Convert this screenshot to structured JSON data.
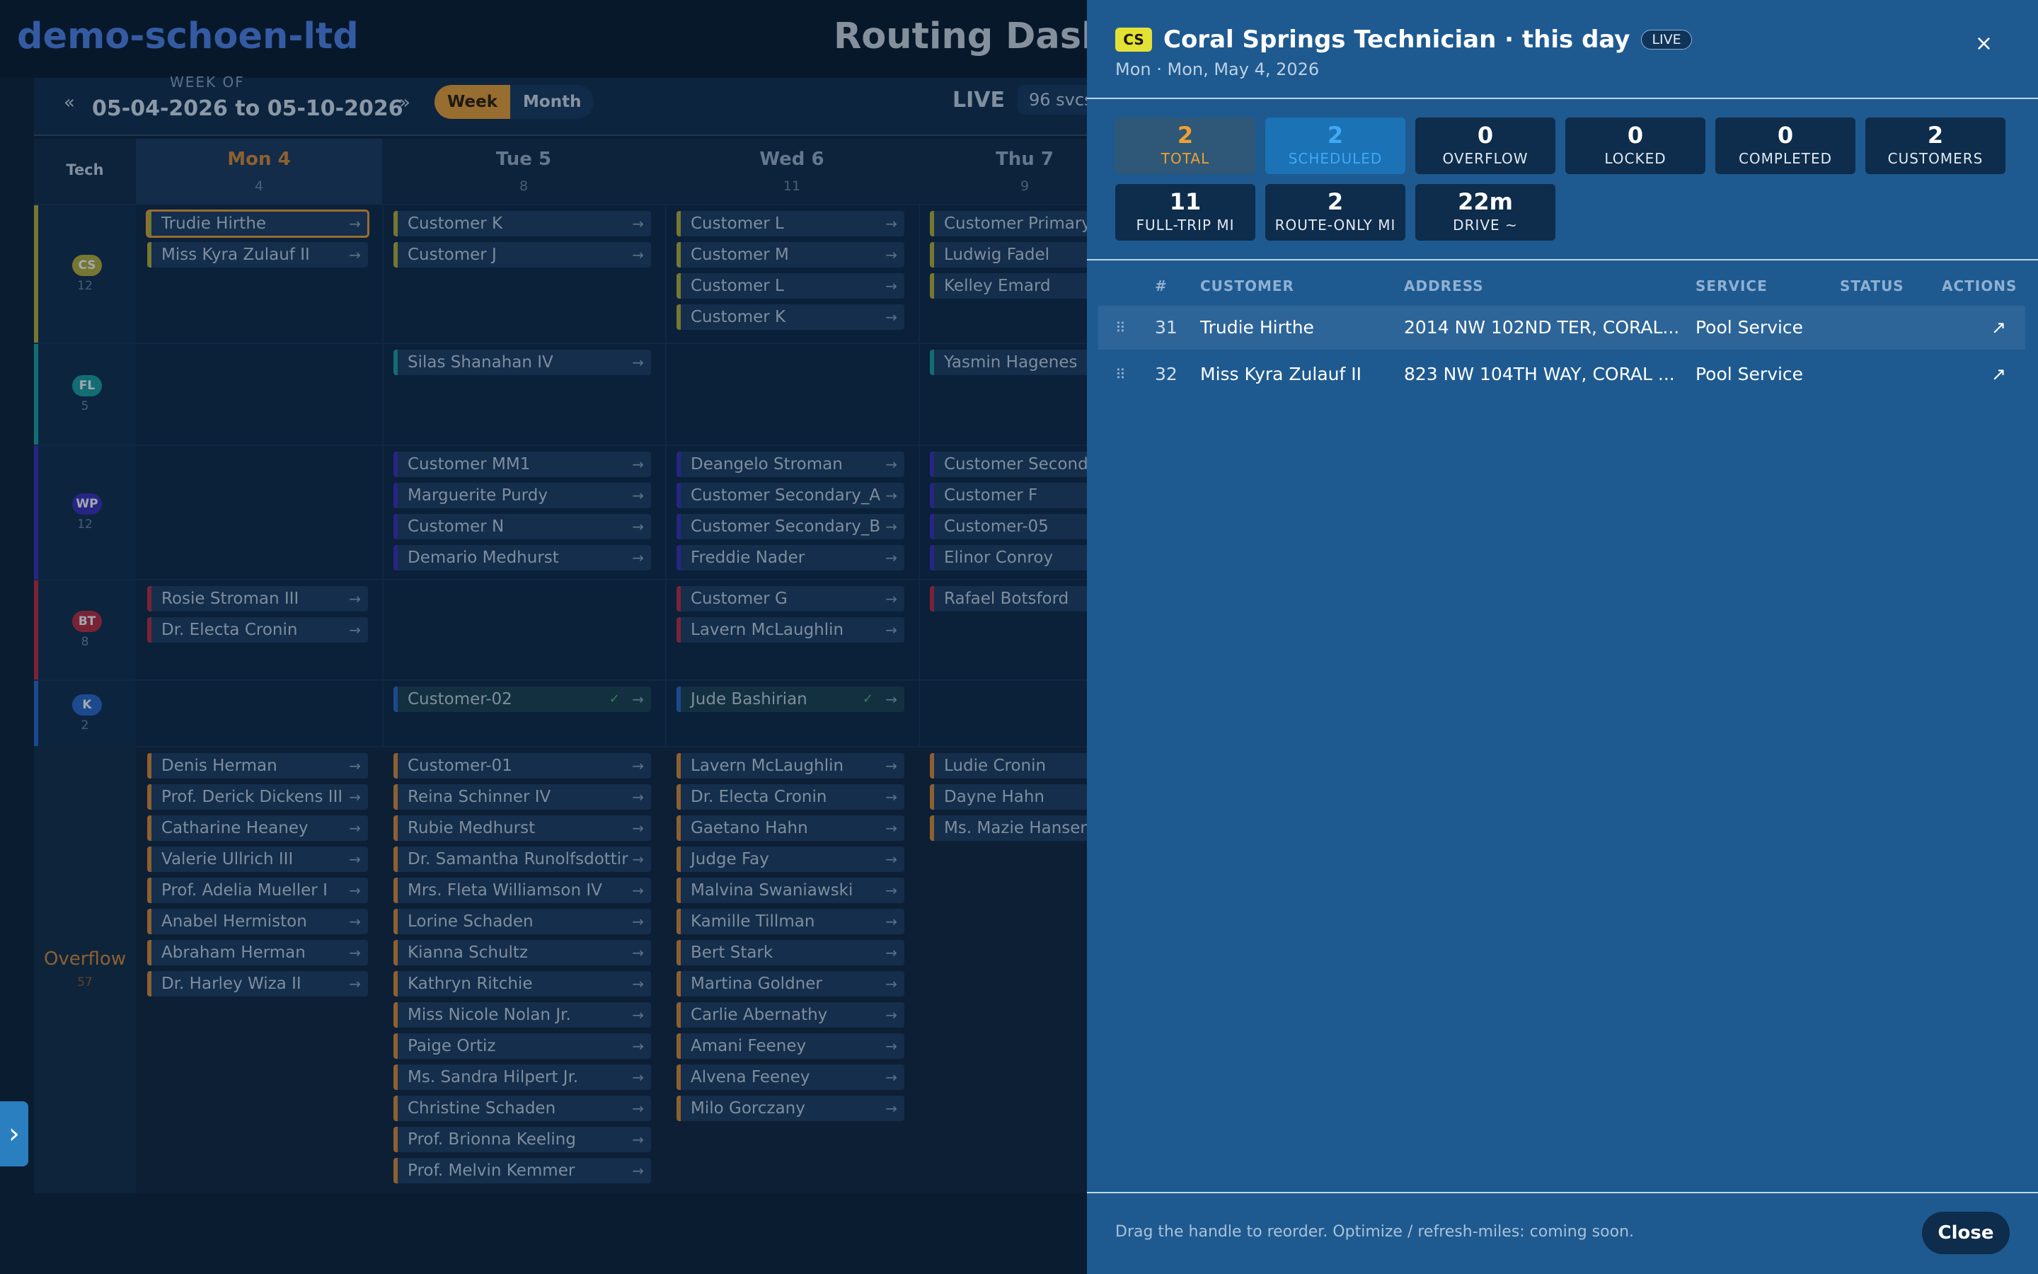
{
  "org_name": "demo-schoen-ltd",
  "page_title": "Routing Dashboard",
  "controls": {
    "week_of_label": "WEEK OF",
    "prev_arrow": "«",
    "next_arrow": "»",
    "week_range": "05-04-2026 to 05-10-2026",
    "view_week": "Week",
    "view_month": "Month",
    "live_label": "LIVE",
    "svcs_label": "96 svcs"
  },
  "grid": {
    "tech_header": "Tech",
    "days": [
      {
        "label": "Mon 4",
        "sub": "4"
      },
      {
        "label": "Tue 5",
        "sub": "8"
      },
      {
        "label": "Wed 6",
        "sub": "11"
      },
      {
        "label": "Thu 7",
        "sub": "9"
      }
    ],
    "techs": [
      {
        "initials": "CS",
        "count": "12",
        "color": "#b8b030"
      },
      {
        "initials": "FL",
        "count": "5",
        "color": "#1aa0a0"
      },
      {
        "initials": "WP",
        "count": "12",
        "color": "#3a2cb8"
      },
      {
        "initials": "BT",
        "count": "8",
        "color": "#c0283a"
      },
      {
        "initials": "K",
        "count": "2",
        "color": "#2a66c8"
      }
    ],
    "overflow_label": "Overflow",
    "overflow_count": "57",
    "lanes": [
      {
        "cols": [
          [
            "Trudie Hirthe",
            "Miss Kyra Zulauf II"
          ],
          [
            "Customer K",
            "Customer J"
          ],
          [
            "Customer L",
            "Customer M",
            "Customer L",
            "Customer K"
          ],
          [
            "Customer Primary",
            "Ludwig Fadel",
            "Kelley Emard"
          ]
        ]
      },
      {
        "cols": [
          [],
          [
            "Silas Shanahan IV"
          ],
          [],
          [
            "Yasmin Hagenes"
          ]
        ]
      },
      {
        "cols": [
          [],
          [
            "Customer MM1",
            "Marguerite Purdy",
            "Customer N",
            "Demario Medhurst"
          ],
          [
            "Deangelo Stroman",
            "Customer Secondary_A",
            "Customer Secondary_B",
            "Freddie Nader"
          ],
          [
            "Customer Secondary",
            "Customer F",
            "Customer-05",
            "Elinor Conroy"
          ]
        ]
      },
      {
        "cols": [
          [
            "Rosie Stroman III",
            "Dr. Electa Cronin"
          ],
          [],
          [
            "Customer G",
            "Lavern McLaughlin"
          ],
          [
            "Rafael Botsford"
          ]
        ]
      },
      {
        "cols": [
          [],
          [
            "Customer-02"
          ],
          [
            "Jude Bashirian"
          ],
          []
        ]
      }
    ],
    "overflow": [
      [
        "Denis Herman",
        "Prof. Derick Dickens III",
        "Catharine Heaney",
        "Valerie Ullrich III",
        "Prof. Adelia Mueller I",
        "Anabel Hermiston",
        "Abraham Herman",
        "Dr. Harley Wiza II"
      ],
      [
        "Customer-01",
        "Reina Schinner IV",
        "Rubie Medhurst",
        "Dr. Samantha Runolfsdottir",
        "Mrs. Fleta Williamson IV",
        "Lorine Schaden",
        "Kianna Schultz",
        "Kathryn Ritchie",
        "Miss Nicole Nolan Jr.",
        "Paige Ortiz",
        "Ms. Sandra Hilpert Jr.",
        "Christine Schaden",
        "Prof. Brionna Keeling",
        "Prof. Melvin Kemmer"
      ],
      [
        "Lavern McLaughlin",
        "Dr. Electa Cronin",
        "Gaetano Hahn",
        "Judge Fay",
        "Malvina Swaniawski",
        "Kamille Tillman",
        "Bert Stark",
        "Martina Goldner",
        "Carlie Abernathy",
        "Amani Feeney",
        "Alvena Feeney",
        "Milo Gorczany"
      ],
      [
        "Ludie Cronin",
        "Dayne Hahn",
        "Ms. Mazie Hansen"
      ]
    ]
  },
  "panel": {
    "badge": "CS",
    "title": "Coral Springs Technician · this day",
    "live_badge": "LIVE",
    "subtitle": "Mon · Mon, May 4, 2026",
    "close_icon": "×",
    "stats": [
      {
        "value": "2",
        "label": "TOTAL"
      },
      {
        "value": "2",
        "label": "SCHEDULED"
      },
      {
        "value": "0",
        "label": "OVERFLOW"
      },
      {
        "value": "0",
        "label": "LOCKED"
      },
      {
        "value": "0",
        "label": "COMPLETED"
      },
      {
        "value": "2",
        "label": "CUSTOMERS"
      },
      {
        "value": "11",
        "label": "FULL-TRIP MI"
      },
      {
        "value": "2",
        "label": "ROUTE-ONLY MI"
      },
      {
        "value": "22m",
        "label": "DRIVE ~"
      }
    ],
    "table": {
      "headers": {
        "num": "#",
        "customer": "CUSTOMER",
        "address": "ADDRESS",
        "service": "SERVICE",
        "status": "STATUS",
        "actions": "ACTIONS"
      },
      "rows": [
        {
          "num": "31",
          "customer": "Trudie Hirthe",
          "address": "2014 NW 102ND TER, CORAL...",
          "service": "Pool Service",
          "status": ""
        },
        {
          "num": "32",
          "customer": "Miss Kyra Zulauf II",
          "address": "823 NW 104TH WAY, CORAL ...",
          "service": "Pool Service",
          "status": ""
        }
      ]
    },
    "footer_note": "Drag the handle to reorder. Optimize / refresh-miles: coming soon.",
    "close_button": "Close"
  },
  "colors": {
    "accent_orange": "#f0a030",
    "panel_bg": "#1e5a90",
    "stat_total": "#f0a030",
    "stat_scheduled": "#3fa9f5",
    "overflow_bar": "#e08b30"
  }
}
